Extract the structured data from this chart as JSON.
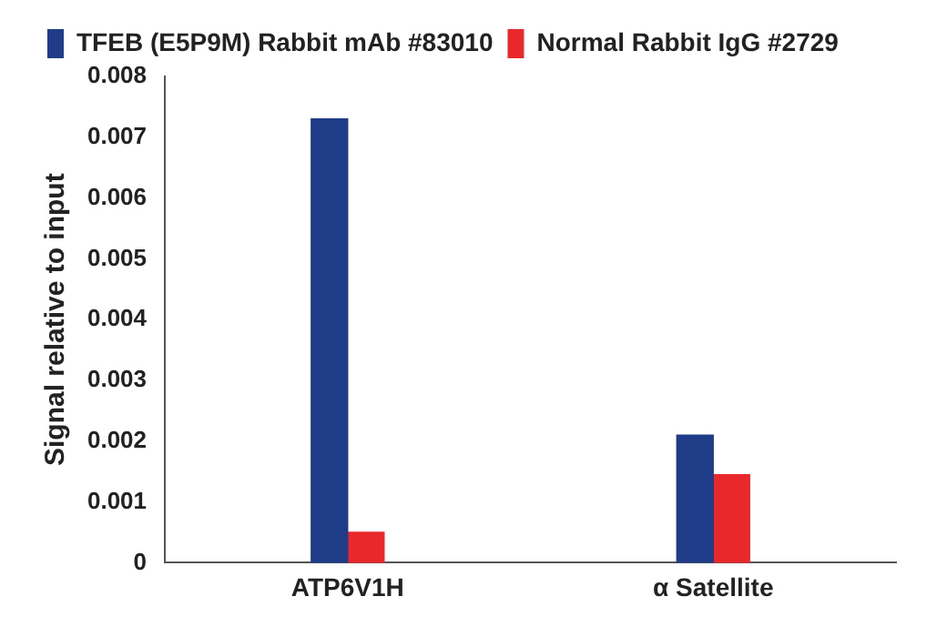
{
  "chart_data": {
    "type": "bar",
    "ylabel": "Signal relative to input",
    "categories": [
      "ATP6V1H",
      "α Satellite"
    ],
    "series": [
      {
        "name": "TFEB (E5P9M) Rabbit mAb #83010",
        "color": "#1f3c88",
        "values": [
          0.0073,
          0.0021
        ]
      },
      {
        "name": "Normal Rabbit IgG #2729",
        "color": "#e8282b",
        "values": [
          0.0005,
          0.00145
        ]
      }
    ],
    "ylim": [
      0,
      0.008
    ],
    "yticks": [
      0,
      0.001,
      0.002,
      0.003,
      0.004,
      0.005,
      0.006,
      0.007,
      0.008
    ],
    "grid": false,
    "legend": "top left"
  }
}
